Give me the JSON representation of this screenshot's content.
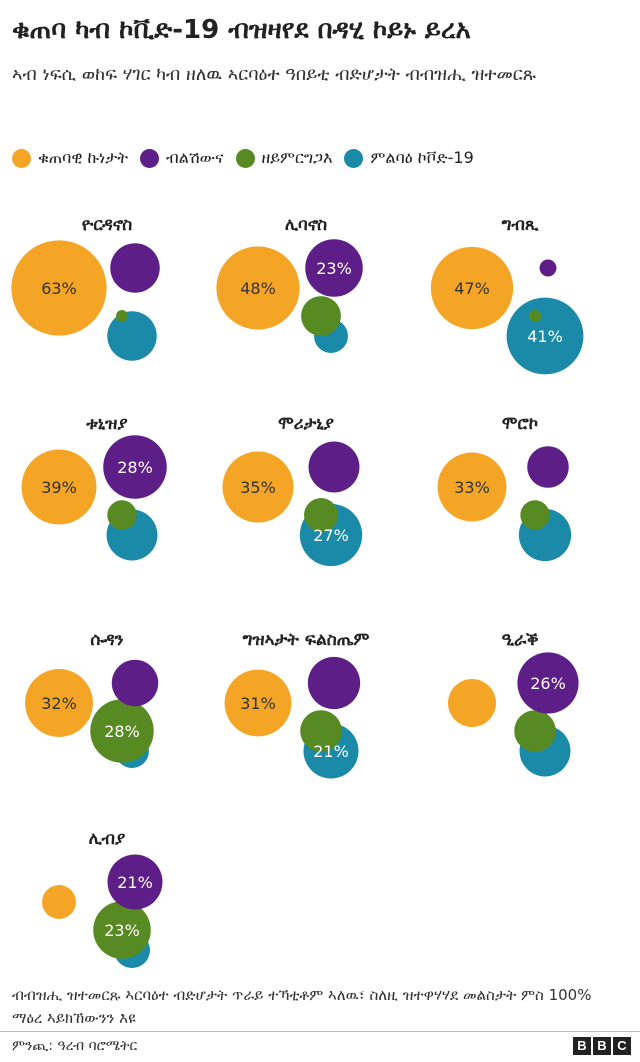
{
  "title": "ቁጠባ ካብ ኮቪድ-19 ብዝዛየደ በዳሂ ኮይኑ ይረአ",
  "subtitle": "ኣብ ነፍሲ ወከፍ ሃገር ካብ ዘለዉ ኣርባዕተ ዓበይቲ ብድሆታት ብብዝሒ ዝተመርጹ",
  "colors": {
    "economy": "#f5a526",
    "corruption": "#5d1f87",
    "instability": "#588a23",
    "covid": "#1b8aa8"
  },
  "legend": [
    {
      "key": "economy",
      "label": "ቁጠባዊ ኩነታት"
    },
    {
      "key": "corruption",
      "label": "ብልሽውና"
    },
    {
      "key": "instability",
      "label": "ዘይምርግጋእ"
    },
    {
      "key": "covid",
      "label": "ምልባዕ ኮቮድ-19"
    }
  ],
  "chart_data": {
    "type": "bubble",
    "title": "ቁጠባ ካብ ኮቪድ-19 ብዝዛየደ በዳሂ ኮይኑ ይረአ",
    "series_names": [
      "ቁጠባዊ ኩነታት",
      "ብልሽውና",
      "ዘይምርግጋእ",
      "ምልባዕ ኮቮድ-19"
    ],
    "unit": "%",
    "countries": [
      {
        "name": "ዮርዳኖስ",
        "values": {
          "economy": 63,
          "corruption": 17,
          "instability": 1,
          "covid": 17
        },
        "labels": {
          "economy": "63%"
        }
      },
      {
        "name": "ሊባኖስ",
        "values": {
          "economy": 48,
          "corruption": 23,
          "instability": 11,
          "covid": 8
        },
        "labels": {
          "economy": "48%",
          "corruption": "23%"
        }
      },
      {
        "name": "ግብጺ",
        "values": {
          "economy": 47,
          "corruption": 2,
          "instability": 1,
          "covid": 41
        },
        "labels": {
          "economy": "47%",
          "covid": "41%"
        }
      },
      {
        "name": "ቱኒዝያ",
        "values": {
          "economy": 39,
          "corruption": 28,
          "instability": 6,
          "covid": 18
        },
        "labels": {
          "economy": "39%",
          "corruption": "28%"
        }
      },
      {
        "name": "ሞሪታኒያ",
        "values": {
          "economy": 35,
          "corruption": 18,
          "instability": 8,
          "covid": 27
        },
        "labels": {
          "economy": "35%",
          "covid": "27%"
        }
      },
      {
        "name": "ሞሮኮ",
        "values": {
          "economy": 33,
          "corruption": 12,
          "instability": 6,
          "covid": 19
        },
        "labels": {
          "economy": "33%"
        }
      },
      {
        "name": "ሱዳን",
        "values": {
          "economy": 32,
          "corruption": 15,
          "instability": 28,
          "covid": 8
        },
        "labels": {
          "economy": "32%",
          "instability": "28%"
        }
      },
      {
        "name": "ግዝኣታት ፍልስጤም",
        "values": {
          "economy": 31,
          "corruption": 19,
          "instability": 12,
          "covid": 21
        },
        "labels": {
          "economy": "31%",
          "covid": "21%"
        }
      },
      {
        "name": "ዒራቕ",
        "values": {
          "economy": 16,
          "corruption": 26,
          "instability": 12,
          "covid": 18
        },
        "labels": {
          "corruption": "26%"
        }
      },
      {
        "name": "ሊብያ",
        "values": {
          "economy": 8,
          "corruption": 21,
          "instability": 23,
          "covid": 9
        },
        "labels": {
          "corruption": "21%",
          "instability": "23%"
        }
      }
    ]
  },
  "footnote": "ብብዝሒ ዝተመርጹ ኣርባዕተ ብድሆታት ጥራይ ተኻቲቶም ኣለዉ፣ ስለዚ ዝተዋሃሃደ መልስታት ምስ 100% ማዕረ ኣይክኸውንን እዩ",
  "source": "ምንጪ: ዓረብ ባሮሜትር",
  "logo": [
    "B",
    "B",
    "C"
  ]
}
